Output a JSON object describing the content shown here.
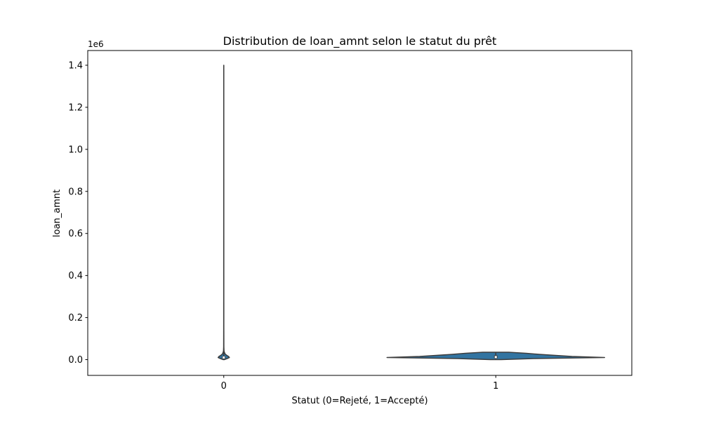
{
  "chart_data": {
    "type": "violin",
    "title": "Distribution de loan_amnt selon le statut du prêt",
    "xlabel": "Statut (0=Rejeté, 1=Accepté)",
    "ylabel": "loan_amnt",
    "y_offset_label": "1e6",
    "categories": [
      "0",
      "1"
    ],
    "ylim": [
      -75000,
      1470000
    ],
    "yticks": [
      0,
      200000,
      400000,
      600000,
      800000,
      1000000,
      1200000,
      1400000
    ],
    "ytick_labels": [
      "0.0",
      "0.2",
      "0.4",
      "0.6",
      "0.8",
      "1.0",
      "1.2",
      "1.4"
    ],
    "grid": false,
    "fill_color": "#3274a1",
    "line_color": "#3d3d3d",
    "distributions": [
      {
        "category": "0",
        "min": 0,
        "q1": 5000,
        "median": 10000,
        "q3": 16000,
        "max": 1400000,
        "density": [
          [
            0,
            0.1
          ],
          [
            5000,
            0.6
          ],
          [
            10000,
            1.0
          ],
          [
            15000,
            0.85
          ],
          [
            20000,
            0.55
          ],
          [
            25000,
            0.3
          ],
          [
            30000,
            0.18
          ],
          [
            40000,
            0.05
          ],
          [
            60000,
            0.02
          ],
          [
            150000,
            0.012
          ],
          [
            400000,
            0.01
          ],
          [
            800000,
            0.008
          ],
          [
            1400000,
            0.006
          ]
        ]
      },
      {
        "category": "1",
        "min": 0,
        "q1": 6000,
        "median": 12000,
        "q3": 20000,
        "max": 35000,
        "density": [
          [
            0,
            0.05
          ],
          [
            5000,
            0.35
          ],
          [
            10000,
            1.0
          ],
          [
            15000,
            0.7
          ],
          [
            20000,
            0.55
          ],
          [
            25000,
            0.4
          ],
          [
            30000,
            0.28
          ],
          [
            35000,
            0.12
          ]
        ]
      }
    ]
  }
}
